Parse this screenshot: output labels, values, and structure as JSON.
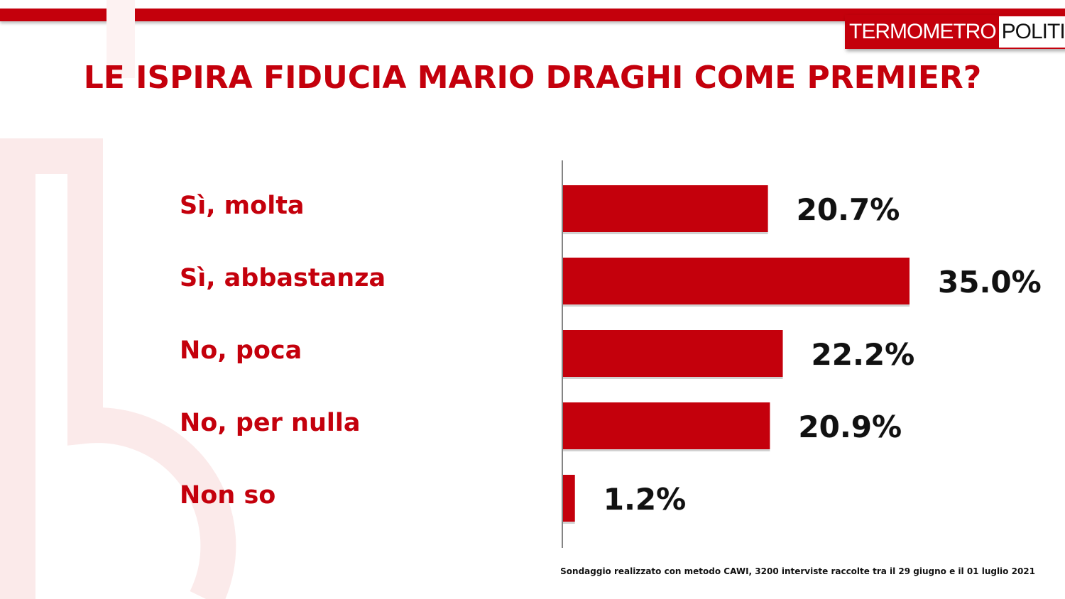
{
  "brand": {
    "part1": "TERMOMETRO",
    "part2": "POLITICO",
    "accent": "#c4000c"
  },
  "title": "LE ISPIRA FIDUCIA MARIO DRAGHI COME PREMIER?",
  "footnote": "Sondaggio realizzato con metodo CAWI, 3200 interviste raccolte tra il 29 giugno  e il 01 luglio 2021",
  "chart_data": {
    "type": "bar",
    "orientation": "horizontal",
    "title": "LE ISPIRA FIDUCIA MARIO DRAGHI COME PREMIER?",
    "categories": [
      "Sì, molta",
      "Sì, abbastanza",
      "No, poca",
      "No, per nulla",
      "Non so"
    ],
    "values": [
      20.7,
      35.0,
      22.2,
      20.9,
      1.2
    ],
    "value_labels": [
      "20.7%",
      "35.0%",
      "22.2%",
      "20.9%",
      "1.2%"
    ],
    "unit": "%",
    "xlim": [
      0,
      35
    ],
    "grid": false,
    "legend": "none",
    "bar_color": "#c4000c"
  }
}
